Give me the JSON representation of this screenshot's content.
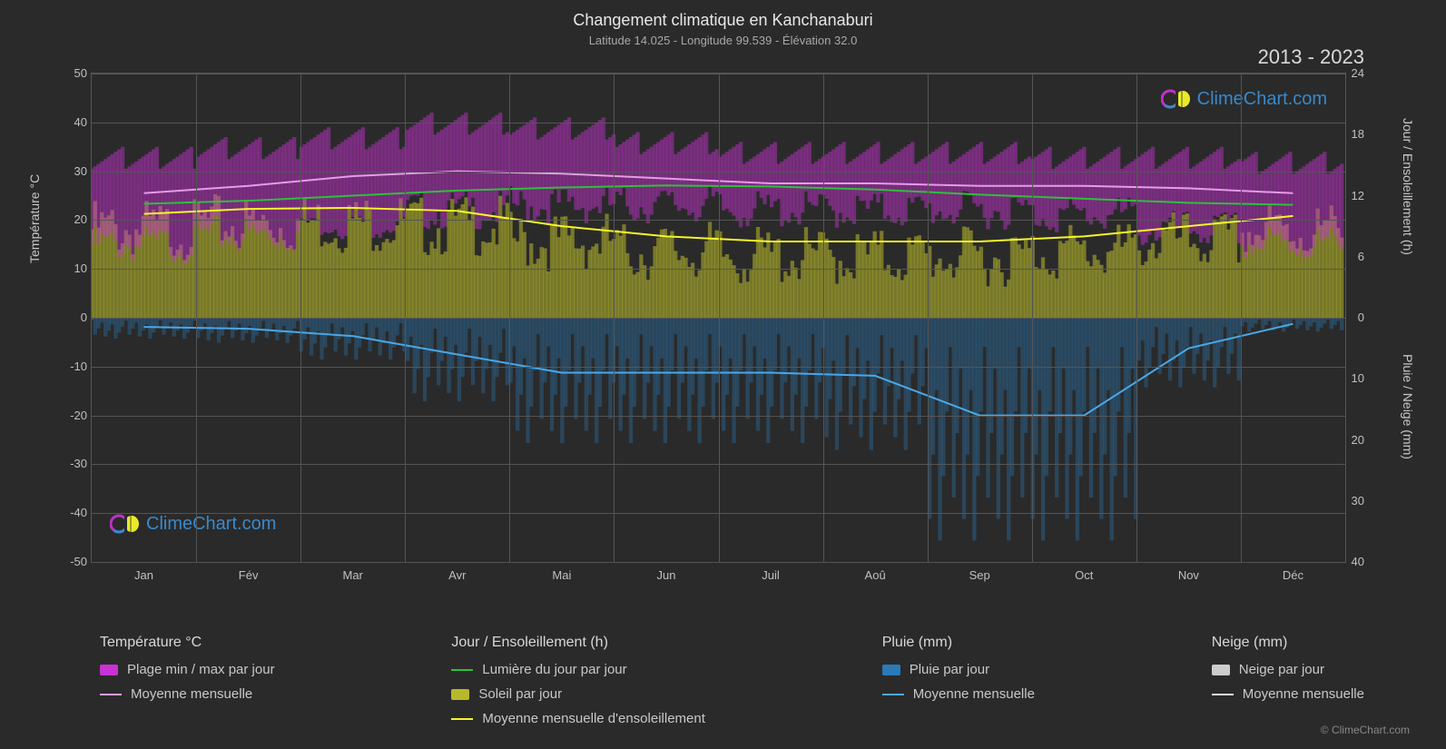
{
  "title": "Changement climatique en Kanchanaburi",
  "subtitle": "Latitude 14.025 - Longitude 99.539 - Élévation 32.0",
  "years_label": "2013 - 2023",
  "axis": {
    "left_label": "Température °C",
    "right_top_label": "Jour / Ensoleillement (h)",
    "right_bot_label": "Pluie / Neige (mm)",
    "left_ticks": [
      50,
      40,
      30,
      20,
      10,
      0,
      -10,
      -20,
      -30,
      -40,
      -50
    ],
    "right_top_ticks": [
      24,
      18,
      12,
      6,
      0
    ],
    "right_bot_ticks": [
      0,
      10,
      20,
      30,
      40
    ],
    "months": [
      "Jan",
      "Fév",
      "Mar",
      "Avr",
      "Mai",
      "Jun",
      "Juil",
      "Aoû",
      "Sep",
      "Oct",
      "Nov",
      "Déc"
    ]
  },
  "colors": {
    "background": "#2a2a2a",
    "grid": "#555555",
    "temp_range": "#c832d2",
    "temp_mean": "#e89ae8",
    "daylight": "#2fbf3a",
    "sun_fill": "#b8b82c",
    "sun_mean": "#f5f52a",
    "rain_fill": "#2a7ab8",
    "rain_mean": "#4aa8e8",
    "snow_fill": "#cccccc",
    "snow_mean": "#dddddd",
    "watermark_text": "#3a8fd4"
  },
  "series": {
    "temp_mean_monthly": [
      25.5,
      27.0,
      29.0,
      30.0,
      29.5,
      28.5,
      27.5,
      27.5,
      27.0,
      27.0,
      26.5,
      25.5
    ],
    "temp_max": [
      33,
      35,
      37,
      40,
      39,
      36,
      34,
      34,
      34,
      33,
      33,
      32
    ],
    "temp_min": [
      17,
      19,
      22,
      24,
      25,
      25,
      24,
      24,
      24,
      23,
      20,
      17
    ],
    "daylight_hours": [
      11.2,
      11.5,
      12.0,
      12.5,
      12.8,
      13.0,
      12.9,
      12.6,
      12.1,
      11.7,
      11.3,
      11.1
    ],
    "sun_mean_hours": [
      10.2,
      10.7,
      10.8,
      10.5,
      9.0,
      8.0,
      7.5,
      7.5,
      7.5,
      8.0,
      9.0,
      10.0
    ],
    "rain_mean_mm": [
      1.5,
      1.8,
      3.0,
      6.0,
      9.0,
      9.0,
      9.0,
      9.5,
      16.0,
      16.0,
      5.0,
      1.0
    ]
  },
  "legend": {
    "temp_head": "Température °C",
    "temp_range": "Plage min / max par jour",
    "temp_mean": "Moyenne mensuelle",
    "day_head": "Jour / Ensoleillement (h)",
    "daylight": "Lumière du jour par jour",
    "sun": "Soleil par jour",
    "sun_mean": "Moyenne mensuelle d'ensoleillement",
    "rain_head": "Pluie (mm)",
    "rain": "Pluie par jour",
    "rain_mean": "Moyenne mensuelle",
    "snow_head": "Neige (mm)",
    "snow": "Neige par jour",
    "snow_mean": "Moyenne mensuelle"
  },
  "watermark": "ClimeChart.com",
  "copyright": "© ClimeChart.com"
}
